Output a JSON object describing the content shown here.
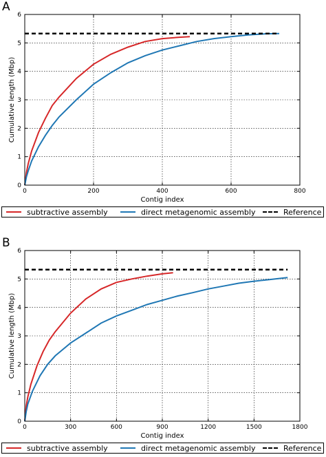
{
  "colors": {
    "subtractive": "#d62728",
    "direct": "#1f77b4",
    "reference": "#000000"
  },
  "chart_data": [
    {
      "panel": "A",
      "type": "line",
      "xlabel": "Contig index",
      "ylabel": "Cumulative length (Mbp)",
      "xlim": [
        0,
        800
      ],
      "ylim": [
        0,
        6
      ],
      "xticks": [
        0,
        200,
        400,
        600,
        800
      ],
      "yticks": [
        0,
        1,
        2,
        3,
        4,
        5,
        6
      ],
      "grid": true,
      "series": [
        {
          "name": "subtractive assembly",
          "color": "#d62728",
          "style": "solid",
          "x": [
            0,
            5,
            10,
            20,
            40,
            60,
            80,
            100,
            150,
            200,
            250,
            300,
            350,
            400,
            450,
            480
          ],
          "y": [
            0,
            0.45,
            0.75,
            1.2,
            1.85,
            2.35,
            2.8,
            3.1,
            3.75,
            4.25,
            4.6,
            4.85,
            5.05,
            5.15,
            5.2,
            5.22
          ]
        },
        {
          "name": "direct metagenomic assembly",
          "color": "#1f77b4",
          "style": "solid",
          "x": [
            0,
            5,
            10,
            20,
            40,
            60,
            80,
            100,
            150,
            200,
            250,
            300,
            350,
            400,
            450,
            500,
            550,
            600,
            650,
            700,
            740
          ],
          "y": [
            0,
            0.3,
            0.5,
            0.85,
            1.35,
            1.75,
            2.1,
            2.4,
            3.0,
            3.55,
            3.95,
            4.3,
            4.55,
            4.75,
            4.9,
            5.05,
            5.15,
            5.22,
            5.28,
            5.32,
            5.33
          ]
        },
        {
          "name": "Reference",
          "color": "#000000",
          "style": "dashed",
          "x": [
            0,
            740
          ],
          "y": [
            5.33,
            5.33
          ]
        }
      ]
    },
    {
      "panel": "B",
      "type": "line",
      "xlabel": "Contig index",
      "ylabel": "Cumulative length (Mbp)",
      "xlim": [
        0,
        1800
      ],
      "ylim": [
        0,
        6
      ],
      "xticks": [
        0,
        300,
        600,
        900,
        1200,
        1500,
        1800
      ],
      "yticks": [
        0,
        1,
        2,
        3,
        4,
        5,
        6
      ],
      "grid": true,
      "series": [
        {
          "name": "subtractive assembly",
          "color": "#d62728",
          "style": "solid",
          "x": [
            0,
            10,
            20,
            40,
            80,
            120,
            160,
            200,
            300,
            400,
            500,
            600,
            700,
            800,
            900,
            970
          ],
          "y": [
            0,
            0.55,
            0.85,
            1.3,
            1.95,
            2.45,
            2.85,
            3.15,
            3.8,
            4.3,
            4.65,
            4.88,
            5.0,
            5.1,
            5.18,
            5.22
          ]
        },
        {
          "name": "direct metagenomic assembly",
          "color": "#1f77b4",
          "style": "solid",
          "x": [
            0,
            10,
            20,
            50,
            100,
            150,
            200,
            300,
            400,
            500,
            600,
            700,
            800,
            900,
            1000,
            1100,
            1200,
            1300,
            1400,
            1500,
            1600,
            1720
          ],
          "y": [
            0,
            0.35,
            0.6,
            1.05,
            1.6,
            2.0,
            2.3,
            2.75,
            3.1,
            3.45,
            3.7,
            3.9,
            4.1,
            4.25,
            4.4,
            4.52,
            4.65,
            4.75,
            4.85,
            4.92,
            4.98,
            5.05
          ]
        },
        {
          "name": "Reference",
          "color": "#000000",
          "style": "dashed",
          "x": [
            0,
            1720
          ],
          "y": [
            5.33,
            5.33
          ]
        }
      ]
    }
  ],
  "legend": {
    "subtractive_label": "subtractive assembly",
    "direct_label": "direct metagenomic assembly",
    "reference_label": "Reference"
  }
}
